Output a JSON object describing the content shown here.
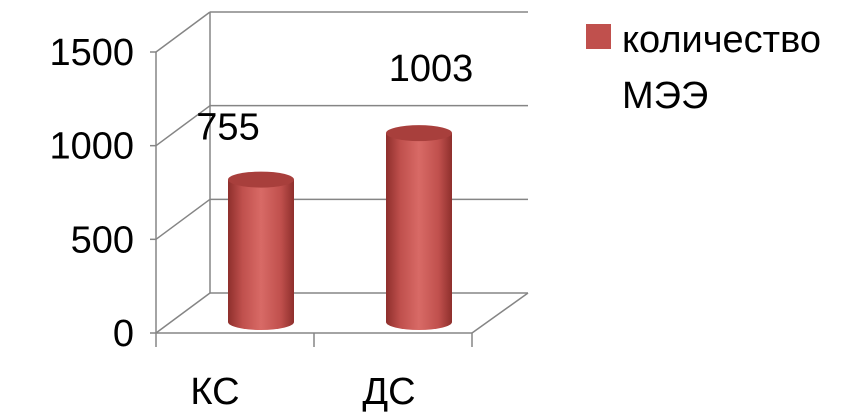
{
  "chart_data": {
    "type": "bar",
    "categories": [
      "КС",
      "ДС"
    ],
    "series": [
      {
        "name": "количество МЭЭ",
        "values": [
          755,
          1003
        ],
        "color": "#C0504D"
      }
    ],
    "data_labels": [
      "755",
      "1003"
    ],
    "yticks": [
      "0",
      "500",
      "1000",
      "1500"
    ],
    "ylim": [
      0,
      1500
    ],
    "grid": true,
    "legend_position": "right",
    "style": "3d-cylinder"
  }
}
